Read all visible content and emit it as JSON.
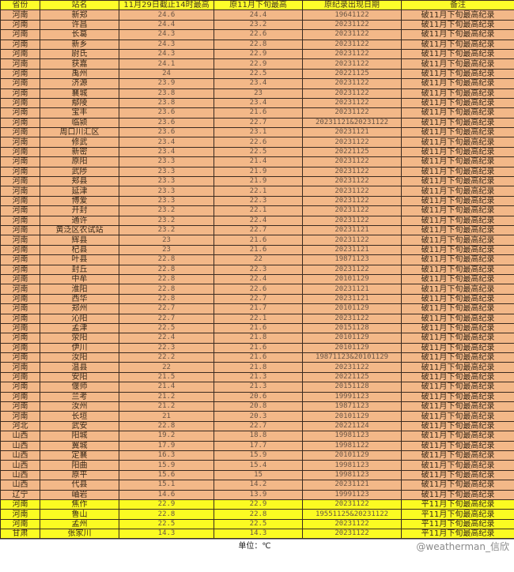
{
  "headers": [
    "省份",
    "站名",
    "11月29日截止14时最高",
    "原11月下旬最高",
    "原纪录出现日期",
    "备注"
  ],
  "rows": [
    [
      "河南",
      "新郑",
      "24.6",
      "24.4",
      "19641122",
      "破11月下旬最高纪录"
    ],
    [
      "河南",
      "许昌",
      "24.4",
      "23.2",
      "20231122",
      "破11月下旬最高纪录"
    ],
    [
      "河南",
      "长葛",
      "24.3",
      "22.6",
      "20231122",
      "破11月下旬最高纪录"
    ],
    [
      "河南",
      "新乡",
      "24.3",
      "22.8",
      "20231122",
      "破11月下旬最高纪录"
    ],
    [
      "河南",
      "尉氏",
      "24.3",
      "22.9",
      "20231122",
      "破11月下旬最高纪录"
    ],
    [
      "河南",
      "获嘉",
      "24.1",
      "22.9",
      "20231122",
      "破11月下旬最高纪录"
    ],
    [
      "河南",
      "禹州",
      "24",
      "22.5",
      "20221125",
      "破11月下旬最高纪录"
    ],
    [
      "河南",
      "济源",
      "23.9",
      "23.4",
      "20231122",
      "破11月下旬最高纪录"
    ],
    [
      "河南",
      "襄城",
      "23.8",
      "23",
      "20231122",
      "破11月下旬最高纪录"
    ],
    [
      "河南",
      "鄢陵",
      "23.8",
      "23.4",
      "20231122",
      "破11月下旬最高纪录"
    ],
    [
      "河南",
      "宝丰",
      "23.6",
      "21.6",
      "20231122",
      "破11月下旬最高纪录"
    ],
    [
      "河南",
      "临颍",
      "23.6",
      "22.7",
      "20231121&20231122",
      "破11月下旬最高纪录"
    ],
    [
      "河南",
      "周口川汇区",
      "23.6",
      "23.1",
      "20231121",
      "破11月下旬最高纪录"
    ],
    [
      "河南",
      "修武",
      "23.4",
      "22.6",
      "20231122",
      "破11月下旬最高纪录"
    ],
    [
      "河南",
      "新密",
      "23.4",
      "22.5",
      "20221125",
      "破11月下旬最高纪录"
    ],
    [
      "河南",
      "原阳",
      "23.3",
      "21.4",
      "20231122",
      "破11月下旬最高纪录"
    ],
    [
      "河南",
      "武陟",
      "23.3",
      "21.9",
      "20231122",
      "破11月下旬最高纪录"
    ],
    [
      "河南",
      "郏县",
      "23.3",
      "21.9",
      "20231122",
      "破11月下旬最高纪录"
    ],
    [
      "河南",
      "延津",
      "23.3",
      "22.1",
      "20231122",
      "破11月下旬最高纪录"
    ],
    [
      "河南",
      "博爱",
      "23.3",
      "22.3",
      "20231122",
      "破11月下旬最高纪录"
    ],
    [
      "河南",
      "开封",
      "23.2",
      "22.1",
      "20231122",
      "破11月下旬最高纪录"
    ],
    [
      "河南",
      "通许",
      "23.2",
      "22.4",
      "20231122",
      "破11月下旬最高纪录"
    ],
    [
      "河南",
      "黄泛区农试站",
      "23.2",
      "22.7",
      "20231121",
      "破11月下旬最高纪录"
    ],
    [
      "河南",
      "辉县",
      "23",
      "21.6",
      "20231122",
      "破11月下旬最高纪录"
    ],
    [
      "河南",
      "杞县",
      "23",
      "21.6",
      "20231121",
      "破11月下旬最高纪录"
    ],
    [
      "河南",
      "叶县",
      "22.8",
      "22",
      "19871123",
      "破11月下旬最高纪录"
    ],
    [
      "河南",
      "封丘",
      "22.8",
      "22.3",
      "20231122",
      "破11月下旬最高纪录"
    ],
    [
      "河南",
      "中牟",
      "22.8",
      "22.4",
      "20101129",
      "破11月下旬最高纪录"
    ],
    [
      "河南",
      "淮阳",
      "22.8",
      "22.6",
      "20231121",
      "破11月下旬最高纪录"
    ],
    [
      "河南",
      "西华",
      "22.8",
      "22.7",
      "20231121",
      "破11月下旬最高纪录"
    ],
    [
      "河南",
      "郑州",
      "22.7",
      "21.7",
      "20101129",
      "破11月下旬最高纪录"
    ],
    [
      "河南",
      "沁阳",
      "22.7",
      "22.1",
      "20231122",
      "破11月下旬最高纪录"
    ],
    [
      "河南",
      "孟津",
      "22.5",
      "21.6",
      "20151128",
      "破11月下旬最高纪录"
    ],
    [
      "河南",
      "荥阳",
      "22.4",
      "21.8",
      "20101129",
      "破11月下旬最高纪录"
    ],
    [
      "河南",
      "伊川",
      "22.3",
      "21.6",
      "20101129",
      "破11月下旬最高纪录"
    ],
    [
      "河南",
      "汝阳",
      "22.2",
      "21.6",
      "19871123&20101129",
      "破11月下旬最高纪录"
    ],
    [
      "河南",
      "温县",
      "22",
      "21.8",
      "20231122",
      "破11月下旬最高纪录"
    ],
    [
      "河南",
      "安阳",
      "21.5",
      "21.3",
      "20221125",
      "破11月下旬最高纪录"
    ],
    [
      "河南",
      "偃师",
      "21.4",
      "21.3",
      "20151128",
      "破11月下旬最高纪录"
    ],
    [
      "河南",
      "兰考",
      "21.2",
      "20.6",
      "19991123",
      "破11月下旬最高纪录"
    ],
    [
      "河南",
      "汝州",
      "21.2",
      "20.8",
      "19871123",
      "破11月下旬最高纪录"
    ],
    [
      "河南",
      "长垣",
      "21",
      "20.3",
      "20101129",
      "破11月下旬最高纪录"
    ],
    [
      "河北",
      "武安",
      "22.8",
      "22.7",
      "20221124",
      "破11月下旬最高纪录"
    ],
    [
      "山西",
      "阳城",
      "19.2",
      "18.8",
      "19981123",
      "破11月下旬最高纪录"
    ],
    [
      "山西",
      "翼城",
      "17.9",
      "17.7",
      "19981122",
      "破11月下旬最高纪录"
    ],
    [
      "山西",
      "定襄",
      "16.3",
      "15.9",
      "20101129",
      "破11月下旬最高纪录"
    ],
    [
      "山西",
      "阳曲",
      "15.9",
      "15.4",
      "19981123",
      "破11月下旬最高纪录"
    ],
    [
      "山西",
      "原平",
      "15.6",
      "15",
      "19981123",
      "破11月下旬最高纪录"
    ],
    [
      "山西",
      "代县",
      "15.1",
      "14.2",
      "20231121",
      "破11月下旬最高纪录"
    ],
    [
      "辽宁",
      "岫岩",
      "14.6",
      "13.9",
      "19991123",
      "破11月下旬最高纪录"
    ],
    [
      "河南",
      "焦作",
      "22.9",
      "22.9",
      "20231122",
      "平11月下旬最高纪录"
    ],
    [
      "河南",
      "鲁山",
      "22.8",
      "22.8",
      "19551125&20231122",
      "平11月下旬最高纪录"
    ],
    [
      "河南",
      "孟州",
      "22.5",
      "22.5",
      "20231122",
      "平11月下旬最高纪录"
    ],
    [
      "甘肃",
      "张家川",
      "14.3",
      "14.3",
      "20231122",
      "平11月下旬最高纪录"
    ]
  ],
  "footer": "单位：℃",
  "watermark": "@weatherman_信欣",
  "colors": {
    "header": "#fdfd2a",
    "broken_record_row": "#f3b888",
    "tied_record_row": "#fbfb22"
  }
}
